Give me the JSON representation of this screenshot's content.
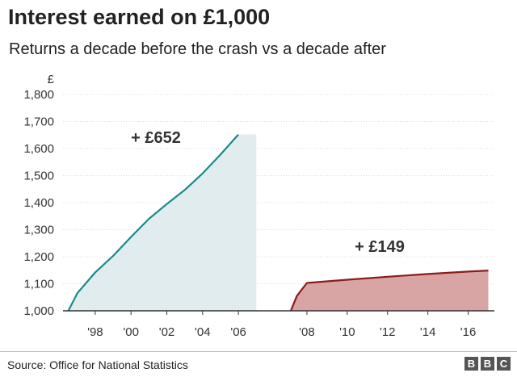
{
  "title": "Interest earned on £1,000",
  "subtitle": "Returns a decade before the crash vs a decade after",
  "source": "Source: Office for National Statistics",
  "logo_letters": [
    "B",
    "B",
    "C"
  ],
  "chart_data": {
    "type": "area",
    "y_unit_label": "£",
    "ylim": [
      1000,
      1800
    ],
    "yticks": [
      {
        "value": 1000,
        "label": "1,000"
      },
      {
        "value": 1100,
        "label": "1,100"
      },
      {
        "value": 1200,
        "label": "1,200"
      },
      {
        "value": 1300,
        "label": "1,300"
      },
      {
        "value": 1400,
        "label": "1,400"
      },
      {
        "value": 1500,
        "label": "1,500"
      },
      {
        "value": 1600,
        "label": "1,600"
      },
      {
        "value": 1700,
        "label": "1,700"
      },
      {
        "value": 1800,
        "label": "1,800"
      }
    ],
    "grid": true,
    "series": [
      {
        "color": "#1a8a8a",
        "fill": "#e1ecef",
        "annotation": "+ £652",
        "xlim": [
          1996.2,
          2007.8
        ],
        "x": [
          1996.5,
          1997,
          1998,
          1999,
          2000,
          2001,
          2002,
          2003,
          2004,
          2005,
          2006,
          2007
        ],
        "y": [
          1000,
          1065,
          1142,
          1203,
          1273,
          1340,
          1395,
          1447,
          1508,
          1578,
          1652,
          1652
        ],
        "xticks": [
          {
            "value": 1998,
            "label": "'98"
          },
          {
            "value": 2000,
            "label": "'00"
          },
          {
            "value": 2002,
            "label": "'02"
          },
          {
            "value": 2004,
            "label": "'04"
          },
          {
            "value": 2006,
            "label": "'06"
          }
        ]
      },
      {
        "color": "#8e1b1b",
        "fill": "#d8a4a4",
        "annotation": "+ £149",
        "xlim": [
          2006.8,
          2017.3
        ],
        "x": [
          2007.2,
          2007.5,
          2008,
          2010,
          2012,
          2014,
          2016,
          2017
        ],
        "y": [
          1000,
          1055,
          1103,
          1115,
          1126,
          1136,
          1145,
          1149
        ],
        "xticks": [
          {
            "value": 2008,
            "label": "'08"
          },
          {
            "value": 2010,
            "label": "'10"
          },
          {
            "value": 2012,
            "label": "'12"
          },
          {
            "value": 2014,
            "label": "'14"
          },
          {
            "value": 2016,
            "label": "'16"
          }
        ]
      }
    ]
  }
}
